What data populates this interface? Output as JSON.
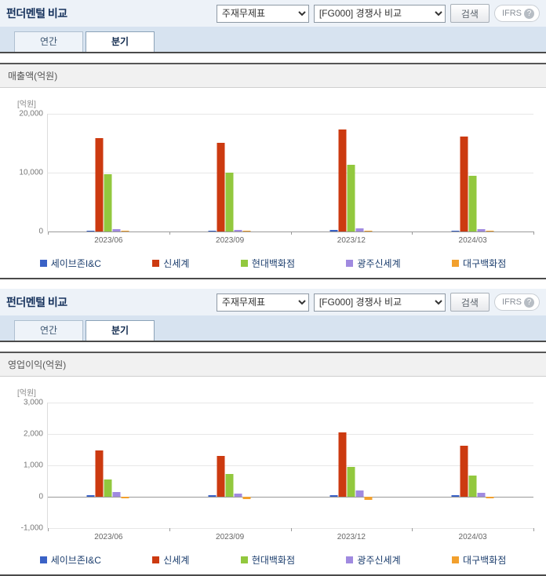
{
  "panels": [
    {
      "title": "펀더멘털 비교",
      "select_statement": "주재무제표",
      "select_compare": "[FG000] 경쟁사 비교",
      "search_label": "검색",
      "ifrs_label": "IFRS",
      "ifrs_help": "?",
      "tab_annual": "연간",
      "tab_quarter": "분기",
      "section_title": "매출액(억원)",
      "unit_label": "[억원]"
    },
    {
      "title": "펀더멘털 비교",
      "select_statement": "주재무제표",
      "select_compare": "[FG000] 경쟁사 비교",
      "search_label": "검색",
      "ifrs_label": "IFRS",
      "ifrs_help": "?",
      "tab_annual": "연간",
      "tab_quarter": "분기",
      "section_title": "영업이익(억원)",
      "unit_label": "[억원]"
    }
  ],
  "legend": [
    {
      "label": "세이브존I&C",
      "color": "#3a62c6"
    },
    {
      "label": "신세계",
      "color": "#cc3a10"
    },
    {
      "label": "현대백화점",
      "color": "#92c83e"
    },
    {
      "label": "광주신세계",
      "color": "#a08ae0"
    },
    {
      "label": "대구백화점",
      "color": "#f2a02d"
    }
  ],
  "chart_data": [
    {
      "type": "bar",
      "title": "매출액(억원)",
      "unit": "억원",
      "categories": [
        "2023/06",
        "2023/09",
        "2023/12",
        "2024/03"
      ],
      "series": [
        {
          "name": "세이브존I&C",
          "color": "#3a62c6",
          "values": [
            200,
            150,
            250,
            200
          ]
        },
        {
          "name": "신세계",
          "color": "#cc3a10",
          "values": [
            15900,
            15100,
            17300,
            16100
          ]
        },
        {
          "name": "현대백화점",
          "color": "#92c83e",
          "values": [
            9800,
            10000,
            11400,
            9500
          ]
        },
        {
          "name": "광주신세계",
          "color": "#a08ae0",
          "values": [
            400,
            300,
            500,
            400
          ]
        },
        {
          "name": "대구백화점",
          "color": "#f2a02d",
          "values": [
            120,
            100,
            170,
            120
          ]
        }
      ],
      "ylim": [
        0,
        20000
      ],
      "yticks": [
        0,
        10000,
        20000
      ],
      "legend_position": "bottom",
      "grid": true
    },
    {
      "type": "bar",
      "title": "영업이익(억원)",
      "unit": "억원",
      "categories": [
        "2023/06",
        "2023/09",
        "2023/12",
        "2024/03"
      ],
      "series": [
        {
          "name": "세이브존I&C",
          "color": "#3a62c6",
          "values": [
            60,
            40,
            60,
            50
          ]
        },
        {
          "name": "신세계",
          "color": "#cc3a10",
          "values": [
            1480,
            1310,
            2050,
            1620
          ]
        },
        {
          "name": "현대백화점",
          "color": "#92c83e",
          "values": [
            550,
            730,
            940,
            680
          ]
        },
        {
          "name": "광주신세계",
          "color": "#a08ae0",
          "values": [
            140,
            100,
            210,
            130
          ]
        },
        {
          "name": "대구백화점",
          "color": "#f2a02d",
          "values": [
            -60,
            -80,
            -90,
            -50
          ]
        }
      ],
      "ylim": [
        -1000,
        3000
      ],
      "yticks": [
        -1000,
        0,
        1000,
        2000,
        3000
      ],
      "legend_position": "bottom",
      "grid": true
    }
  ]
}
